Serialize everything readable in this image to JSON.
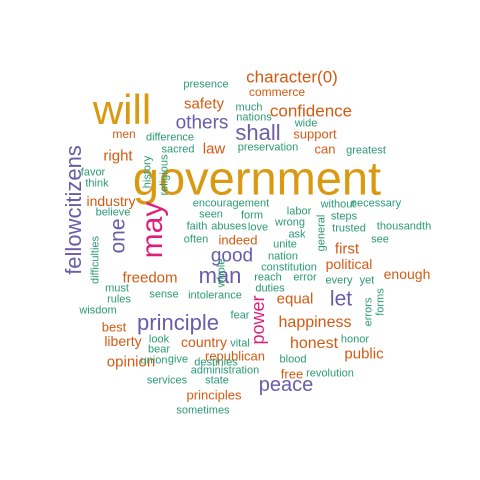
{
  "colors": {
    "gold": "#D99A12",
    "purple": "#6A5CA8",
    "orange": "#D35A12",
    "magenta": "#DE1F7C",
    "green": "#2A9A72"
  },
  "words": [
    {
      "text": "government",
      "color": "gold"
    },
    {
      "text": "will",
      "color": "gold"
    },
    {
      "text": "may",
      "color": "magenta"
    },
    {
      "text": "fellowcitizens",
      "color": "purple"
    },
    {
      "text": "principle",
      "color": "purple"
    },
    {
      "text": "man",
      "color": "purple"
    },
    {
      "text": "shall",
      "color": "purple"
    },
    {
      "text": "others",
      "color": "purple"
    },
    {
      "text": "one",
      "color": "purple"
    },
    {
      "text": "let",
      "color": "purple"
    },
    {
      "text": "good",
      "color": "purple"
    },
    {
      "text": "peace",
      "color": "purple"
    },
    {
      "text": "power",
      "color": "magenta"
    },
    {
      "text": "character(0)",
      "color": "orange"
    },
    {
      "text": "confidence",
      "color": "orange"
    },
    {
      "text": "safety",
      "color": "orange"
    },
    {
      "text": "right",
      "color": "orange"
    },
    {
      "text": "law",
      "color": "orange"
    },
    {
      "text": "happiness",
      "color": "orange"
    },
    {
      "text": "freedom",
      "color": "orange"
    },
    {
      "text": "honest",
      "color": "orange"
    },
    {
      "text": "public",
      "color": "orange"
    },
    {
      "text": "opinion",
      "color": "orange"
    },
    {
      "text": "equal",
      "color": "orange"
    },
    {
      "text": "first",
      "color": "orange"
    },
    {
      "text": "industry",
      "color": "orange"
    },
    {
      "text": "liberty",
      "color": "orange"
    },
    {
      "text": "country",
      "color": "orange"
    },
    {
      "text": "enough",
      "color": "orange"
    },
    {
      "text": "political",
      "color": "orange"
    },
    {
      "text": "indeed",
      "color": "orange"
    },
    {
      "text": "support",
      "color": "orange"
    },
    {
      "text": "can",
      "color": "orange"
    },
    {
      "text": "best",
      "color": "orange"
    },
    {
      "text": "republican",
      "color": "orange"
    },
    {
      "text": "free",
      "color": "orange"
    },
    {
      "text": "principles",
      "color": "orange"
    },
    {
      "text": "commerce",
      "color": "orange"
    },
    {
      "text": "men",
      "color": "orange"
    },
    {
      "text": "presence",
      "color": "green"
    },
    {
      "text": "much",
      "color": "green"
    },
    {
      "text": "nations",
      "color": "green"
    },
    {
      "text": "wide",
      "color": "green"
    },
    {
      "text": "difference",
      "color": "green"
    },
    {
      "text": "sacred",
      "color": "green"
    },
    {
      "text": "preservation",
      "color": "green"
    },
    {
      "text": "greatest",
      "color": "green"
    },
    {
      "text": "favor",
      "color": "green"
    },
    {
      "text": "think",
      "color": "green"
    },
    {
      "text": "history",
      "color": "green"
    },
    {
      "text": "religious",
      "color": "green"
    },
    {
      "text": "encouragement",
      "color": "green"
    },
    {
      "text": "labor",
      "color": "green"
    },
    {
      "text": "without",
      "color": "green"
    },
    {
      "text": "necessary",
      "color": "green"
    },
    {
      "text": "believe",
      "color": "green"
    },
    {
      "text": "seen",
      "color": "green"
    },
    {
      "text": "form",
      "color": "green"
    },
    {
      "text": "wrong",
      "color": "green"
    },
    {
      "text": "steps",
      "color": "green"
    },
    {
      "text": "faith",
      "color": "green"
    },
    {
      "text": "abuses",
      "color": "green"
    },
    {
      "text": "love",
      "color": "green"
    },
    {
      "text": "ask",
      "color": "green"
    },
    {
      "text": "trusted",
      "color": "green"
    },
    {
      "text": "thousandth",
      "color": "green"
    },
    {
      "text": "often",
      "color": "green"
    },
    {
      "text": "unite",
      "color": "green"
    },
    {
      "text": "general",
      "color": "green"
    },
    {
      "text": "see",
      "color": "green"
    },
    {
      "text": "difficulties",
      "color": "green"
    },
    {
      "text": "nation",
      "color": "green"
    },
    {
      "text": "constitution",
      "color": "green"
    },
    {
      "text": "whole",
      "color": "green"
    },
    {
      "text": "reach",
      "color": "green"
    },
    {
      "text": "error",
      "color": "green"
    },
    {
      "text": "every",
      "color": "green"
    },
    {
      "text": "yet",
      "color": "green"
    },
    {
      "text": "must",
      "color": "green"
    },
    {
      "text": "sense",
      "color": "green"
    },
    {
      "text": "duties",
      "color": "green"
    },
    {
      "text": "errors",
      "color": "green"
    },
    {
      "text": "rules",
      "color": "green"
    },
    {
      "text": "intolerance",
      "color": "green"
    },
    {
      "text": "forms",
      "color": "green"
    },
    {
      "text": "wisdom",
      "color": "green"
    },
    {
      "text": "fear",
      "color": "green"
    },
    {
      "text": "look",
      "color": "green"
    },
    {
      "text": "vital",
      "color": "green"
    },
    {
      "text": "bear",
      "color": "green"
    },
    {
      "text": "honor",
      "color": "green"
    },
    {
      "text": "give",
      "color": "green"
    },
    {
      "text": "blood",
      "color": "green"
    },
    {
      "text": "union",
      "color": "green"
    },
    {
      "text": "destinies",
      "color": "green"
    },
    {
      "text": "administration",
      "color": "green"
    },
    {
      "text": "revolution",
      "color": "green"
    },
    {
      "text": "services",
      "color": "green"
    },
    {
      "text": "state",
      "color": "green"
    },
    {
      "text": "sometimes",
      "color": "green"
    }
  ]
}
